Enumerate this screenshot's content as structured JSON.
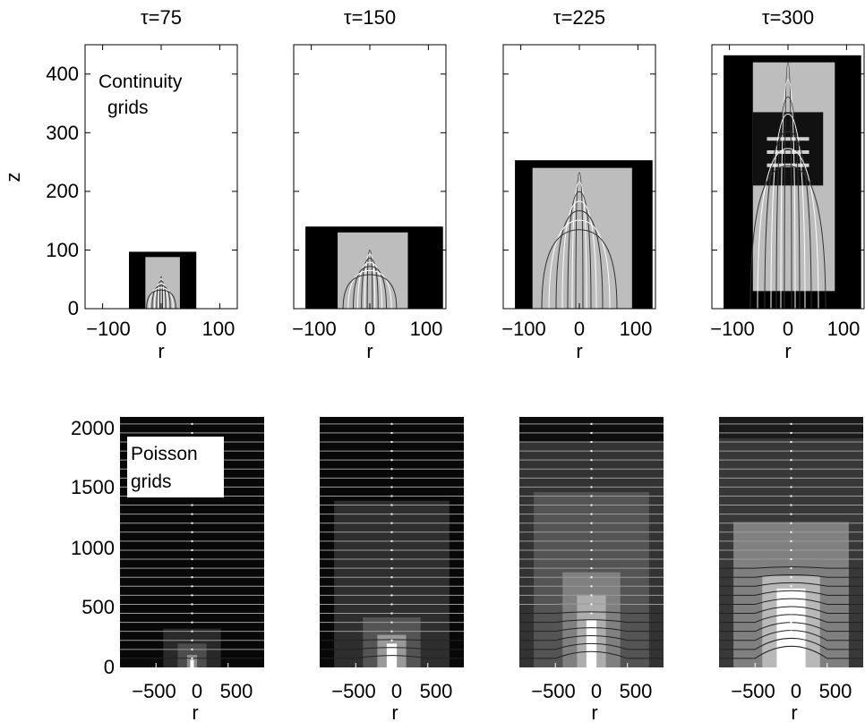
{
  "figure": {
    "panel_titles": [
      "τ=75",
      "τ=150",
      "τ=225",
      "τ=300"
    ],
    "top_row": {
      "annotation_lines": [
        "Continuity",
        "grids"
      ],
      "ylabel": "z",
      "xlabel": "r",
      "y_ticks": [
        "0",
        "100",
        "200",
        "300",
        "400"
      ],
      "x_ticks": [
        "−100",
        "0",
        "100"
      ]
    },
    "bottom_row": {
      "annotation_lines": [
        "Poisson",
        "grids"
      ],
      "xlabel": "r",
      "y_ticks": [
        "0",
        "500",
        "1000",
        "1500",
        "2000"
      ],
      "x_ticks": [
        "−500",
        "0",
        "500"
      ]
    }
  },
  "chart_data": [
    {
      "type": "heatmap",
      "title": "τ=75",
      "xlabel": "r",
      "ylabel": "z",
      "xlim": [
        -130,
        130
      ],
      "ylim": [
        0,
        450
      ],
      "grid_boxes": [
        {
          "r": [
            -55,
            60
          ],
          "z": [
            0,
            97
          ],
          "shade": "black"
        },
        {
          "r": [
            -27,
            32
          ],
          "z": [
            0,
            88
          ],
          "shade": "lightgray"
        }
      ],
      "streamer_head_z": 55
    },
    {
      "type": "heatmap",
      "title": "τ=150",
      "xlabel": "r",
      "xlim": [
        -130,
        130
      ],
      "ylim": [
        0,
        450
      ],
      "grid_boxes": [
        {
          "r": [
            -110,
            125
          ],
          "z": [
            0,
            140
          ],
          "shade": "black"
        },
        {
          "r": [
            -55,
            65
          ],
          "z": [
            0,
            130
          ],
          "shade": "lightgray"
        }
      ],
      "streamer_head_z": 100
    },
    {
      "type": "heatmap",
      "title": "τ=225",
      "xlabel": "r",
      "xlim": [
        -130,
        130
      ],
      "ylim": [
        0,
        450
      ],
      "grid_boxes": [
        {
          "r": [
            -110,
            125
          ],
          "z": [
            0,
            253
          ],
          "shade": "black"
        },
        {
          "r": [
            -80,
            90
          ],
          "z": [
            0,
            240
          ],
          "shade": "lightgray"
        }
      ],
      "streamer_head_z": 232
    },
    {
      "type": "heatmap",
      "title": "τ=300",
      "xlabel": "r",
      "xlim": [
        -130,
        130
      ],
      "ylim": [
        0,
        450
      ],
      "grid_boxes": [
        {
          "r": [
            -110,
            125
          ],
          "z": [
            0,
            432
          ],
          "shade": "black"
        },
        {
          "r": [
            -60,
            80
          ],
          "z": [
            30,
            420
          ],
          "shade": "lightgray"
        }
      ],
      "dense_patch": {
        "r": [
          -60,
          60
        ],
        "z": [
          210,
          335
        ]
      },
      "streamer_head_z": 420
    },
    {
      "type": "heatmap",
      "title": "",
      "xlabel": "r",
      "ylabel": "",
      "xlim": [
        -1000,
        1000
      ],
      "ylim": [
        0,
        2000
      ],
      "levels": [
        {
          "r": [
            -1000,
            1000
          ],
          "z": [
            0,
            2000
          ],
          "gray": 0.03
        },
        {
          "r": [
            -400,
            400
          ],
          "z": [
            0,
            310
          ],
          "gray": 0.16
        },
        {
          "r": [
            -200,
            200
          ],
          "z": [
            0,
            190
          ],
          "gray": 0.3
        },
        {
          "r": [
            -70,
            70
          ],
          "z": [
            0,
            100
          ],
          "gray": 0.55
        },
        {
          "r": [
            -25,
            25
          ],
          "z": [
            0,
            60
          ],
          "gray": 1.0
        }
      ]
    },
    {
      "type": "heatmap",
      "title": "",
      "xlabel": "r",
      "xlim": [
        -1000,
        1000
      ],
      "ylim": [
        0,
        2000
      ],
      "levels": [
        {
          "r": [
            -1000,
            1000
          ],
          "z": [
            0,
            2000
          ],
          "gray": 0.03
        },
        {
          "r": [
            -800,
            800
          ],
          "z": [
            0,
            1330
          ],
          "gray": 0.18
        },
        {
          "r": [
            -400,
            400
          ],
          "z": [
            0,
            400
          ],
          "gray": 0.33
        },
        {
          "r": [
            -200,
            200
          ],
          "z": [
            0,
            260
          ],
          "gray": 0.6
        },
        {
          "r": [
            -70,
            70
          ],
          "z": [
            0,
            190
          ],
          "gray": 1.0
        }
      ]
    },
    {
      "type": "heatmap",
      "title": "",
      "xlabel": "r",
      "xlim": [
        -1000,
        1000
      ],
      "ylim": [
        0,
        2000
      ],
      "levels": [
        {
          "r": [
            -1000,
            1000
          ],
          "z": [
            0,
            2000
          ],
          "gray": 0.05
        },
        {
          "r": [
            -1000,
            1000
          ],
          "z": [
            0,
            1800
          ],
          "gray": 0.2
        },
        {
          "r": [
            -800,
            800
          ],
          "z": [
            0,
            1400
          ],
          "gray": 0.33
        },
        {
          "r": [
            -400,
            400
          ],
          "z": [
            0,
            760
          ],
          "gray": 0.5
        },
        {
          "r": [
            -200,
            200
          ],
          "z": [
            0,
            580
          ],
          "gray": 0.68
        },
        {
          "r": [
            -70,
            70
          ],
          "z": [
            0,
            380
          ],
          "gray": 1.0
        }
      ]
    },
    {
      "type": "heatmap",
      "title": "",
      "xlabel": "r",
      "xlim": [
        -1000,
        1000
      ],
      "ylim": [
        0,
        2000
      ],
      "levels": [
        {
          "r": [
            -1000,
            1000
          ],
          "z": [
            0,
            2000
          ],
          "gray": 0.1
        },
        {
          "r": [
            -1000,
            1000
          ],
          "z": [
            0,
            1830
          ],
          "gray": 0.22
        },
        {
          "r": [
            -800,
            800
          ],
          "z": [
            0,
            1160
          ],
          "gray": 0.5
        },
        {
          "r": [
            -400,
            400
          ],
          "z": [
            0,
            730
          ],
          "gray": 0.72
        },
        {
          "r": [
            -200,
            200
          ],
          "z": [
            0,
            630
          ],
          "gray": 1.0
        }
      ]
    }
  ]
}
